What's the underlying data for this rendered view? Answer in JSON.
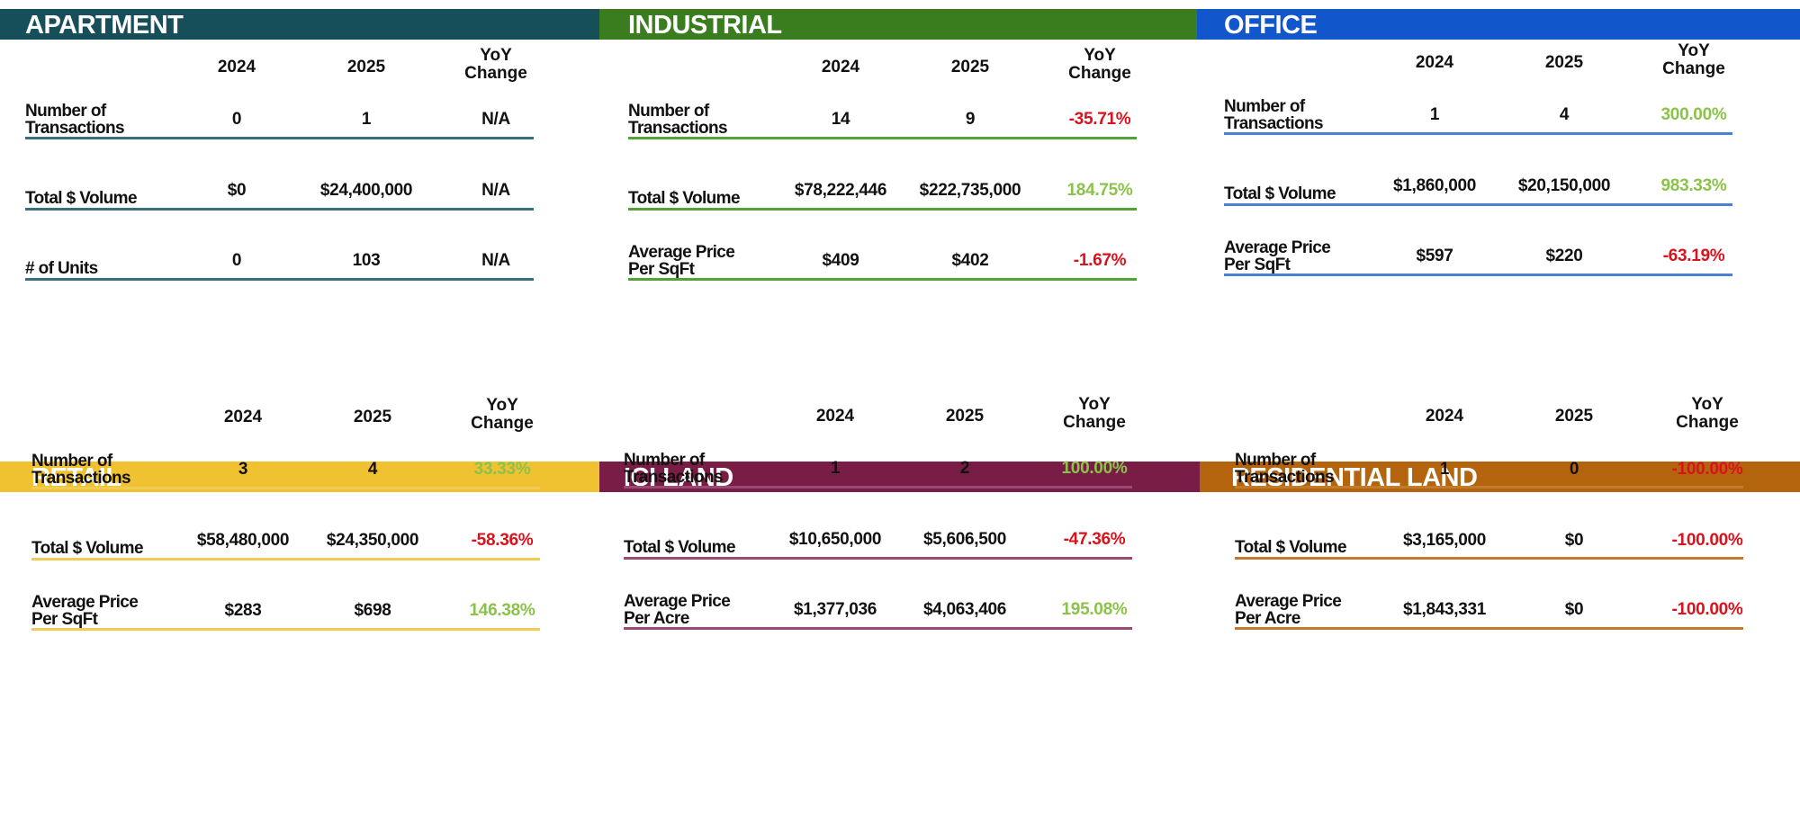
{
  "labels": {
    "year_2024": "2024",
    "year_2025": "2025",
    "yoy_line1": "YoY",
    "yoy_line2": "Change"
  },
  "panels": [
    {
      "title": "APARTMENT",
      "color": "#164e5a",
      "line_color": "#3b6f80",
      "rows": [
        {
          "label_line1": "Number of",
          "label_line2": "Transactions",
          "v2024": "0",
          "v2025": "1",
          "yoy": "N/A",
          "yoy_trend": "neutral"
        },
        {
          "label_line1": "Total $ Volume",
          "label_line2": "",
          "v2024": "$0",
          "v2025": "$24,400,000",
          "yoy": "N/A",
          "yoy_trend": "neutral"
        },
        {
          "label_line1": "# of Units",
          "label_line2": "",
          "v2024": "0",
          "v2025": "103",
          "yoy": "N/A",
          "yoy_trend": "neutral"
        }
      ]
    },
    {
      "title": "INDUSTRIAL",
      "color": "#3a7d1f",
      "line_color": "#56a038",
      "rows": [
        {
          "label_line1": "Number of",
          "label_line2": "Transactions",
          "v2024": "14",
          "v2025": "9",
          "yoy": "-35.71%",
          "yoy_trend": "negative"
        },
        {
          "label_line1": "Total $ Volume",
          "label_line2": "",
          "v2024": "$78,222,446",
          "v2025": "$222,735,000",
          "yoy": "184.75%",
          "yoy_trend": "positive"
        },
        {
          "label_line1": "Average Price",
          "label_line2": "Per SqFt",
          "v2024": "$409",
          "v2025": "$402",
          "yoy": "-1.67%",
          "yoy_trend": "negative"
        }
      ]
    },
    {
      "title": "OFFICE",
      "color": "#1256cc",
      "line_color": "#4a7fd6",
      "rows": [
        {
          "label_line1": "Number of",
          "label_line2": "Transactions",
          "v2024": "1",
          "v2025": "4",
          "yoy": "300.00%",
          "yoy_trend": "positive"
        },
        {
          "label_line1": "Total $ Volume",
          "label_line2": "",
          "v2024": "$1,860,000",
          "v2025": "$20,150,000",
          "yoy": "983.33%",
          "yoy_trend": "positive"
        },
        {
          "label_line1": "Average Price",
          "label_line2": "Per SqFt",
          "v2024": "$597",
          "v2025": "$220",
          "yoy": "-63.19%",
          "yoy_trend": "negative"
        }
      ]
    },
    {
      "title": "RETAIL",
      "color": "#f0c232",
      "line_color": "#f0cc55",
      "rows": [
        {
          "label_line1": "Number of",
          "label_line2": "Transactions",
          "v2024": "3",
          "v2025": "4",
          "yoy": "33.33%",
          "yoy_trend": "positive"
        },
        {
          "label_line1": "Total $ Volume",
          "label_line2": "",
          "v2024": "$58,480,000",
          "v2025": "$24,350,000",
          "yoy": "-58.36%",
          "yoy_trend": "negative"
        },
        {
          "label_line1": "Average Price",
          "label_line2": "Per SqFt",
          "v2024": "$283",
          "v2025": "$698",
          "yoy": "146.38%",
          "yoy_trend": "positive"
        }
      ]
    },
    {
      "title": "ICI LAND",
      "color": "#7a1d46",
      "line_color": "#9a4a72",
      "rows": [
        {
          "label_line1": "Number of",
          "label_line2": "Transactions",
          "v2024": "1",
          "v2025": "2",
          "yoy": "100.00%",
          "yoy_trend": "positive"
        },
        {
          "label_line1": "Total $ Volume",
          "label_line2": "",
          "v2024": "$10,650,000",
          "v2025": "$5,606,500",
          "yoy": "-47.36%",
          "yoy_trend": "negative"
        },
        {
          "label_line1": "Average Price",
          "label_line2": "Per Acre",
          "v2024": "$1,377,036",
          "v2025": "$4,063,406",
          "yoy": "195.08%",
          "yoy_trend": "positive"
        }
      ]
    },
    {
      "title": "RESIDENTIAL LAND",
      "color": "#b5640e",
      "line_color": "#c27a2c",
      "rows": [
        {
          "label_line1": "Number of",
          "label_line2": "Transactions",
          "v2024": "1",
          "v2025": "0",
          "yoy": "-100.00%",
          "yoy_trend": "negative"
        },
        {
          "label_line1": "Total $ Volume",
          "label_line2": "",
          "v2024": "$3,165,000",
          "v2025": "$0",
          "yoy": "-100.00%",
          "yoy_trend": "negative"
        },
        {
          "label_line1": "Average Price",
          "label_line2": "Per Acre",
          "v2024": "$1,843,331",
          "v2025": "$0",
          "yoy": "-100.00%",
          "yoy_trend": "negative"
        }
      ]
    }
  ]
}
